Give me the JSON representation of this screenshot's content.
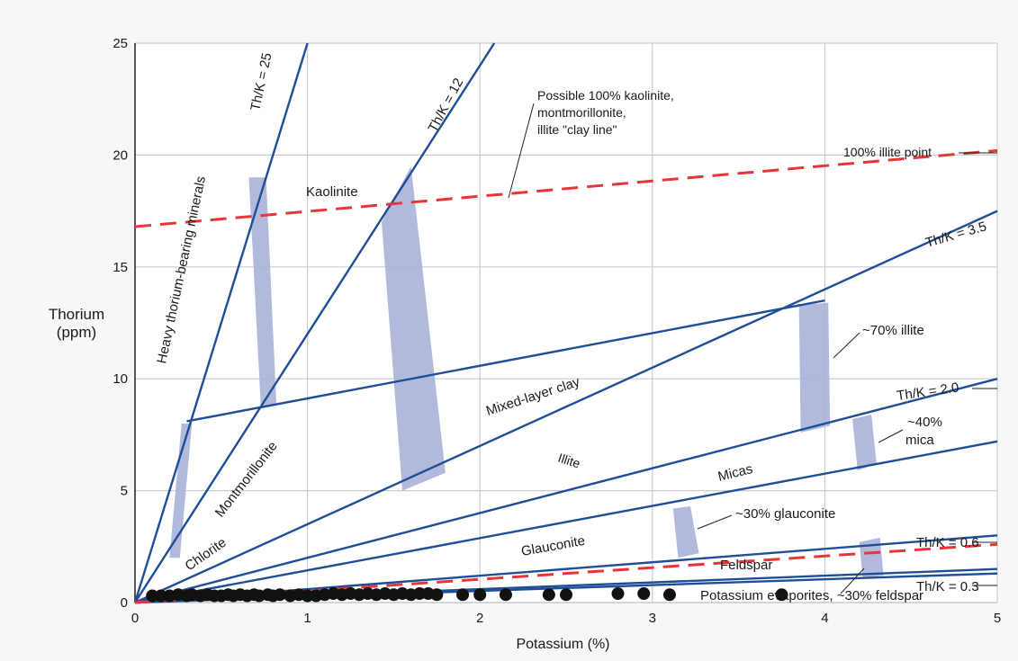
{
  "chart_data": {
    "type": "line",
    "xlabel": "Potassium (%)",
    "ylabel": [
      "Thorium",
      "(ppm)"
    ],
    "xlim": [
      0,
      5
    ],
    "ylim": [
      0,
      25
    ],
    "x_ticks": [
      "0",
      "1",
      "2",
      "3",
      "4",
      "5"
    ],
    "y_ticks": [
      "0",
      "5",
      "10",
      "15",
      "20",
      "25"
    ],
    "grid": true,
    "th_k_lines": [
      {
        "name": "Th/K = 25",
        "ratio": 25
      },
      {
        "name": "Th/K = 12",
        "ratio": 12
      },
      {
        "name": "Th/K = 3.5",
        "ratio": 3.5
      },
      {
        "name": "Th/K = 2.0",
        "ratio": 2.0
      },
      {
        "name": "Th/K = 0.6",
        "ratio": 0.6
      },
      {
        "name": "Th/K = 0.3",
        "ratio": 0.3
      }
    ],
    "extra_lines": [
      {
        "x": [
          0,
          5
        ],
        "y": [
          0,
          7.2
        ]
      },
      {
        "x": [
          0.3,
          4.0
        ],
        "y": [
          8.1,
          13.5
        ]
      },
      {
        "x": [
          0,
          5
        ],
        "y": [
          0,
          1.3
        ]
      }
    ],
    "clay_line": {
      "label": "Possible 100% kaolinite, montmorillonite, illite \"clay line\"",
      "x": [
        0,
        5
      ],
      "y": [
        16.8,
        20.2
      ],
      "color": "#e8343a"
    },
    "feldspar_dashed": {
      "x": [
        0,
        5
      ],
      "y": [
        0,
        2.6
      ],
      "color": "#e8343a"
    },
    "point_label": {
      "text": "100% illite point"
    },
    "bands": [
      {
        "x0": 0.2,
        "x1": 0.3,
        "xt1": 0.32
      },
      {
        "x0": 0.65,
        "x1": 0.75,
        "xt1": 0.81
      },
      {
        "x0": 1.4,
        "x1": 1.6,
        "xt1": 1.8
      },
      {
        "x0": 3.85,
        "x1": 4.0,
        "xt1": 4.03
      },
      {
        "x0": 4.15,
        "x1": 4.25,
        "xt1": 4.25
      },
      {
        "x0": 3.1,
        "x1": 3.2,
        "xt1": 3.26
      },
      {
        "x0": 4.2,
        "x1": 4.3,
        "xt1": 4.32
      }
    ],
    "regions": [
      "Heavy thorium-bearing minerals",
      "Kaolinite",
      "Montmorillonite",
      "Chlorite",
      "Mixed-layer clay",
      "Illite",
      "Micas",
      "Glauconite",
      "Feldspar",
      "Potassium evaporites, ~30% feldspar"
    ],
    "annotations": [
      "~70% illite",
      "~40%",
      "mica",
      "~30% glauconite"
    ],
    "colors": {
      "line": "#1f4e96",
      "band": "#a9b2d8",
      "dashed": "#e8343a",
      "grid": "#cccccc"
    },
    "points": [
      [
        0.1,
        0.3
      ],
      [
        0.15,
        0.3
      ],
      [
        0.2,
        0.3
      ],
      [
        0.25,
        0.35
      ],
      [
        0.3,
        0.3
      ],
      [
        0.33,
        0.35
      ],
      [
        0.38,
        0.3
      ],
      [
        0.42,
        0.35
      ],
      [
        0.46,
        0.3
      ],
      [
        0.5,
        0.3
      ],
      [
        0.54,
        0.35
      ],
      [
        0.57,
        0.3
      ],
      [
        0.61,
        0.35
      ],
      [
        0.65,
        0.3
      ],
      [
        0.69,
        0.35
      ],
      [
        0.72,
        0.3
      ],
      [
        0.77,
        0.35
      ],
      [
        0.8,
        0.3
      ],
      [
        0.84,
        0.35
      ],
      [
        0.9,
        0.3
      ],
      [
        0.95,
        0.35
      ],
      [
        1.0,
        0.3
      ],
      [
        1.05,
        0.3
      ],
      [
        1.1,
        0.35
      ],
      [
        1.15,
        0.4
      ],
      [
        1.2,
        0.35
      ],
      [
        1.25,
        0.4
      ],
      [
        1.3,
        0.35
      ],
      [
        1.35,
        0.4
      ],
      [
        1.4,
        0.35
      ],
      [
        1.45,
        0.4
      ],
      [
        1.5,
        0.35
      ],
      [
        1.55,
        0.4
      ],
      [
        1.6,
        0.35
      ],
      [
        1.65,
        0.4
      ],
      [
        1.7,
        0.4
      ],
      [
        1.75,
        0.35
      ],
      [
        1.9,
        0.35
      ],
      [
        2.0,
        0.35
      ],
      [
        2.15,
        0.35
      ],
      [
        2.4,
        0.35
      ],
      [
        2.5,
        0.35
      ],
      [
        2.8,
        0.4
      ],
      [
        2.95,
        0.4
      ],
      [
        3.1,
        0.35
      ],
      [
        3.75,
        0.35
      ]
    ]
  }
}
